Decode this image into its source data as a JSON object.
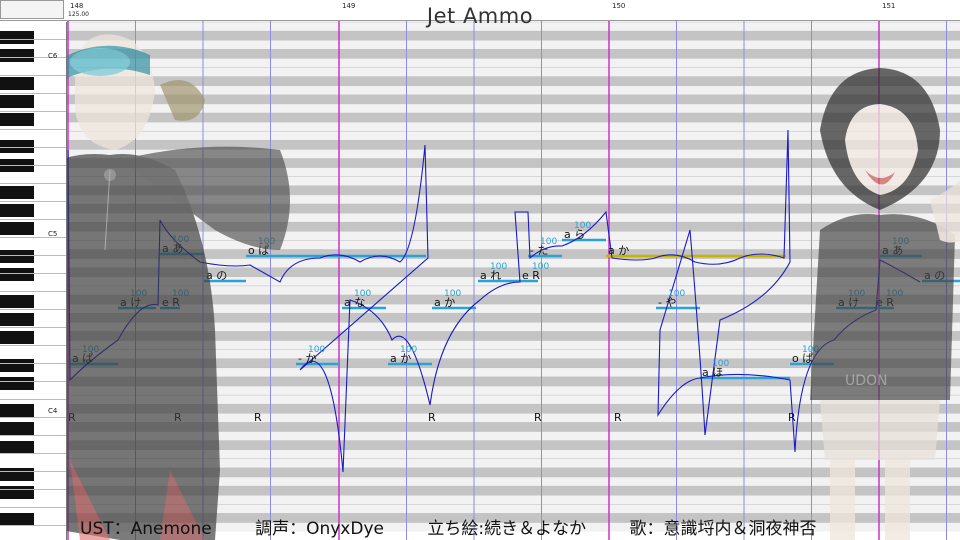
{
  "app": {
    "title": "Jet Ammo",
    "tempo": "125.00"
  },
  "ruler": {
    "measures": [
      "148",
      "149",
      "150",
      "151"
    ]
  },
  "keyboard": {
    "octave_labels": [
      "C6",
      "C5",
      "C4"
    ]
  },
  "notes": [
    {
      "lyric": "a ぱ",
      "velocity": "100"
    },
    {
      "lyric": "a け",
      "velocity": "100"
    },
    {
      "lyric": "e R",
      "velocity": "100"
    },
    {
      "lyric": "a あ",
      "velocity": "100"
    },
    {
      "lyric": "a の",
      "velocity": ""
    },
    {
      "lyric": "o ぱ",
      "velocity": "100"
    },
    {
      "lyric": "- か",
      "velocity": "100"
    },
    {
      "lyric": "a な",
      "velocity": "100"
    },
    {
      "lyric": "a か",
      "velocity": "100"
    },
    {
      "lyric": "a か",
      "velocity": "100"
    },
    {
      "lyric": "a れ",
      "velocity": "100"
    },
    {
      "lyric": "e R",
      "velocity": "100"
    },
    {
      "lyric": "- た",
      "velocity": "100"
    },
    {
      "lyric": "a ら",
      "velocity": "100"
    },
    {
      "lyric": "a か",
      "velocity": ""
    },
    {
      "lyric": "- や",
      "velocity": "100"
    },
    {
      "lyric": "a ほ",
      "velocity": "100"
    },
    {
      "lyric": "o ぱ",
      "velocity": "100"
    },
    {
      "lyric": "a け",
      "velocity": "100"
    },
    {
      "lyric": "e R",
      "velocity": "100"
    },
    {
      "lyric": "a あ",
      "velocity": "100"
    },
    {
      "lyric": "a の",
      "velocity": ""
    }
  ],
  "rests": [
    "R",
    "R",
    "R",
    "R",
    "R",
    "R",
    "R"
  ],
  "credits": {
    "ust": "UST：Anemone",
    "tuning": "調声：OnyxDye",
    "art": "立ち絵:続き＆よなか",
    "song": "歌：意識埒内＆洞夜神否"
  },
  "colors": {
    "row_dark": "#c4c4c4",
    "row_light": "#f2f2f2",
    "note_line": "#29a3d6",
    "selected_note": "#c8b400",
    "pitch_curve": "#1a1acc",
    "measure_line": "#cc33cc",
    "beat_line": "#8c8ce6"
  },
  "icons": {
    "left_character": "singer-illustration-left",
    "right_character": "singer-illustration-right"
  }
}
